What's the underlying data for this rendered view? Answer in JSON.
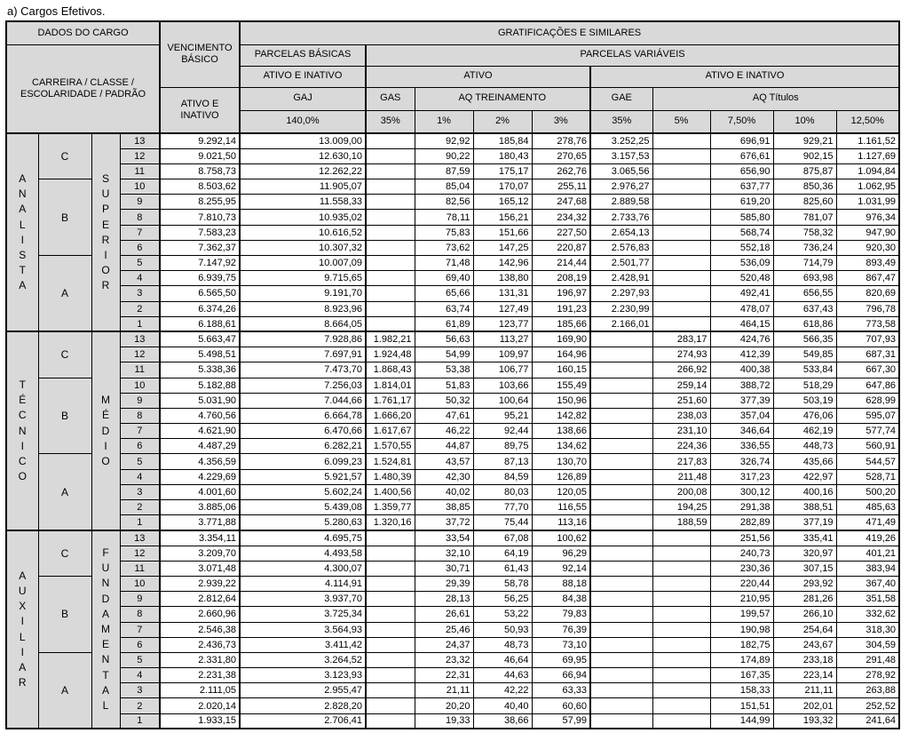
{
  "title": "a) Cargos Efetivos.",
  "columns": {
    "dados": "DADOS DO CARGO",
    "carreira_classe": "CARREIRA / CLASSE /\nESCOLARIDADE / PADRÃO",
    "vencimento": "VENCIMENTO\nBÁSICO",
    "venc_ativo_inativo": "ATIVO E\nINATIVO",
    "gratificacoes": "GRATIFICAÇÕES E SIMILARES",
    "parcelas_basicas": "PARCELAS BÁSICAS",
    "parcelas_basicas_sub": "ATIVO E INATIVO",
    "parcelas_variaveis": "PARCELAS VARIÁVEIS",
    "ativo": "ATIVO",
    "ativo_e_inativo": "ATIVO E INATIVO",
    "gaj": "GAJ",
    "gaj_pct": "140,0%",
    "gas": "GAS",
    "gas_pct": "35%",
    "aq_treinamento": "AQ TREINAMENTO",
    "pct_1": "1%",
    "pct_2": "2%",
    "pct_3": "3%",
    "gae": "GAE",
    "gae_pct": "35%",
    "aq_titulos": "AQ Títulos",
    "pct_5": "5%",
    "pct_7_5": "7,50%",
    "pct_10": "10%",
    "pct_12_5": "12,50%"
  },
  "value_column_keys": [
    "vencimento",
    "gaj",
    "gas",
    "aq-trein-1",
    "aq-trein-2",
    "aq-trein-3",
    "gae",
    "aq-tit-5",
    "aq-tit-7-5",
    "aq-tit-10",
    "aq-tit-12-5"
  ],
  "sections": [
    {
      "carreira": "ANALISTA",
      "escolaridade": "SUPERIOR",
      "classes": [
        {
          "label": "C",
          "rows": 3
        },
        {
          "label": "B",
          "rows": 5
        },
        {
          "label": "A",
          "rows": 5
        }
      ],
      "rows": [
        {
          "padrao": "13",
          "values": [
            "9.292,14",
            "13.009,00",
            "",
            "92,92",
            "185,84",
            "278,76",
            "3.252,25",
            "",
            "696,91",
            "929,21",
            "1.161,52"
          ]
        },
        {
          "padrao": "12",
          "values": [
            "9.021,50",
            "12.630,10",
            "",
            "90,22",
            "180,43",
            "270,65",
            "3.157,53",
            "",
            "676,61",
            "902,15",
            "1.127,69"
          ]
        },
        {
          "padrao": "11",
          "values": [
            "8.758,73",
            "12.262,22",
            "",
            "87,59",
            "175,17",
            "262,76",
            "3.065,56",
            "",
            "656,90",
            "875,87",
            "1.094,84"
          ]
        },
        {
          "padrao": "10",
          "values": [
            "8.503,62",
            "11.905,07",
            "",
            "85,04",
            "170,07",
            "255,11",
            "2.976,27",
            "",
            "637,77",
            "850,36",
            "1.062,95"
          ]
        },
        {
          "padrao": "9",
          "values": [
            "8.255,95",
            "11.558,33",
            "",
            "82,56",
            "165,12",
            "247,68",
            "2.889,58",
            "",
            "619,20",
            "825,60",
            "1.031,99"
          ]
        },
        {
          "padrao": "8",
          "values": [
            "7.810,73",
            "10.935,02",
            "",
            "78,11",
            "156,21",
            "234,32",
            "2.733,76",
            "",
            "585,80",
            "781,07",
            "976,34"
          ]
        },
        {
          "padrao": "7",
          "values": [
            "7.583,23",
            "10.616,52",
            "",
            "75,83",
            "151,66",
            "227,50",
            "2.654,13",
            "",
            "568,74",
            "758,32",
            "947,90"
          ]
        },
        {
          "padrao": "6",
          "values": [
            "7.362,37",
            "10.307,32",
            "",
            "73,62",
            "147,25",
            "220,87",
            "2.576,83",
            "",
            "552,18",
            "736,24",
            "920,30"
          ]
        },
        {
          "padrao": "5",
          "values": [
            "7.147,92",
            "10.007,09",
            "",
            "71,48",
            "142,96",
            "214,44",
            "2.501,77",
            "",
            "536,09",
            "714,79",
            "893,49"
          ]
        },
        {
          "padrao": "4",
          "values": [
            "6.939,75",
            "9.715,65",
            "",
            "69,40",
            "138,80",
            "208,19",
            "2.428,91",
            "",
            "520,48",
            "693,98",
            "867,47"
          ]
        },
        {
          "padrao": "3",
          "values": [
            "6.565,50",
            "9.191,70",
            "",
            "65,66",
            "131,31",
            "196,97",
            "2.297,93",
            "",
            "492,41",
            "656,55",
            "820,69"
          ]
        },
        {
          "padrao": "2",
          "values": [
            "6.374,26",
            "8.923,96",
            "",
            "63,74",
            "127,49",
            "191,23",
            "2.230,99",
            "",
            "478,07",
            "637,43",
            "796,78"
          ]
        },
        {
          "padrao": "1",
          "values": [
            "6.188,61",
            "8.664,05",
            "",
            "61,89",
            "123,77",
            "185,66",
            "2.166,01",
            "",
            "464,15",
            "618,86",
            "773,58"
          ]
        }
      ]
    },
    {
      "carreira": "TÉCNICO",
      "escolaridade": "MÉDIO",
      "classes": [
        {
          "label": "C",
          "rows": 3
        },
        {
          "label": "B",
          "rows": 5
        },
        {
          "label": "A",
          "rows": 5
        }
      ],
      "rows": [
        {
          "padrao": "13",
          "values": [
            "5.663,47",
            "7.928,86",
            "1.982,21",
            "56,63",
            "113,27",
            "169,90",
            "",
            "283,17",
            "424,76",
            "566,35",
            "707,93"
          ]
        },
        {
          "padrao": "12",
          "values": [
            "5.498,51",
            "7.697,91",
            "1.924,48",
            "54,99",
            "109,97",
            "164,96",
            "",
            "274,93",
            "412,39",
            "549,85",
            "687,31"
          ]
        },
        {
          "padrao": "11",
          "values": [
            "5.338,36",
            "7.473,70",
            "1.868,43",
            "53,38",
            "106,77",
            "160,15",
            "",
            "266,92",
            "400,38",
            "533,84",
            "667,30"
          ]
        },
        {
          "padrao": "10",
          "values": [
            "5.182,88",
            "7.256,03",
            "1.814,01",
            "51,83",
            "103,66",
            "155,49",
            "",
            "259,14",
            "388,72",
            "518,29",
            "647,86"
          ]
        },
        {
          "padrao": "9",
          "values": [
            "5.031,90",
            "7.044,66",
            "1.761,17",
            "50,32",
            "100,64",
            "150,96",
            "",
            "251,60",
            "377,39",
            "503,19",
            "628,99"
          ]
        },
        {
          "padrao": "8",
          "values": [
            "4.760,56",
            "6.664,78",
            "1.666,20",
            "47,61",
            "95,21",
            "142,82",
            "",
            "238,03",
            "357,04",
            "476,06",
            "595,07"
          ]
        },
        {
          "padrao": "7",
          "values": [
            "4.621,90",
            "6.470,66",
            "1.617,67",
            "46,22",
            "92,44",
            "138,66",
            "",
            "231,10",
            "346,64",
            "462,19",
            "577,74"
          ]
        },
        {
          "padrao": "6",
          "values": [
            "4.487,29",
            "6.282,21",
            "1.570,55",
            "44,87",
            "89,75",
            "134,62",
            "",
            "224,36",
            "336,55",
            "448,73",
            "560,91"
          ]
        },
        {
          "padrao": "5",
          "values": [
            "4.356,59",
            "6.099,23",
            "1.524,81",
            "43,57",
            "87,13",
            "130,70",
            "",
            "217,83",
            "326,74",
            "435,66",
            "544,57"
          ]
        },
        {
          "padrao": "4",
          "values": [
            "4.229,69",
            "5.921,57",
            "1.480,39",
            "42,30",
            "84,59",
            "126,89",
            "",
            "211,48",
            "317,23",
            "422,97",
            "528,71"
          ]
        },
        {
          "padrao": "3",
          "values": [
            "4.001,60",
            "5.602,24",
            "1.400,56",
            "40,02",
            "80,03",
            "120,05",
            "",
            "200,08",
            "300,12",
            "400,16",
            "500,20"
          ]
        },
        {
          "padrao": "2",
          "values": [
            "3.885,06",
            "5.439,08",
            "1.359,77",
            "38,85",
            "77,70",
            "116,55",
            "",
            "194,25",
            "291,38",
            "388,51",
            "485,63"
          ]
        },
        {
          "padrao": "1",
          "values": [
            "3.771,88",
            "5.280,63",
            "1.320,16",
            "37,72",
            "75,44",
            "113,16",
            "",
            "188,59",
            "282,89",
            "377,19",
            "471,49"
          ]
        }
      ]
    },
    {
      "carreira": "AUXILIAR",
      "escolaridade": "FUNDAMENTAL",
      "classes": [
        {
          "label": "C",
          "rows": 3
        },
        {
          "label": "B",
          "rows": 5
        },
        {
          "label": "A",
          "rows": 5
        }
      ],
      "rows": [
        {
          "padrao": "13",
          "values": [
            "3.354,11",
            "4.695,75",
            "",
            "33,54",
            "67,08",
            "100,62",
            "",
            "",
            "251,56",
            "335,41",
            "419,26"
          ]
        },
        {
          "padrao": "12",
          "values": [
            "3.209,70",
            "4.493,58",
            "",
            "32,10",
            "64,19",
            "96,29",
            "",
            "",
            "240,73",
            "320,97",
            "401,21"
          ]
        },
        {
          "padrao": "11",
          "values": [
            "3.071,48",
            "4.300,07",
            "",
            "30,71",
            "61,43",
            "92,14",
            "",
            "",
            "230,36",
            "307,15",
            "383,94"
          ]
        },
        {
          "padrao": "10",
          "values": [
            "2.939,22",
            "4.114,91",
            "",
            "29,39",
            "58,78",
            "88,18",
            "",
            "",
            "220,44",
            "293,92",
            "367,40"
          ]
        },
        {
          "padrao": "9",
          "values": [
            "2.812,64",
            "3.937,70",
            "",
            "28,13",
            "56,25",
            "84,38",
            "",
            "",
            "210,95",
            "281,26",
            "351,58"
          ]
        },
        {
          "padrao": "8",
          "values": [
            "2.660,96",
            "3.725,34",
            "",
            "26,61",
            "53,22",
            "79,83",
            "",
            "",
            "199,57",
            "266,10",
            "332,62"
          ]
        },
        {
          "padrao": "7",
          "values": [
            "2.546,38",
            "3.564,93",
            "",
            "25,46",
            "50,93",
            "76,39",
            "",
            "",
            "190,98",
            "254,64",
            "318,30"
          ]
        },
        {
          "padrao": "6",
          "values": [
            "2.436,73",
            "3.411,42",
            "",
            "24,37",
            "48,73",
            "73,10",
            "",
            "",
            "182,75",
            "243,67",
            "304,59"
          ]
        },
        {
          "padrao": "5",
          "values": [
            "2.331,80",
            "3.264,52",
            "",
            "23,32",
            "46,64",
            "69,95",
            "",
            "",
            "174,89",
            "233,18",
            "291,48"
          ]
        },
        {
          "padrao": "4",
          "values": [
            "2.231,38",
            "3.123,93",
            "",
            "22,31",
            "44,63",
            "66,94",
            "",
            "",
            "167,35",
            "223,14",
            "278,92"
          ]
        },
        {
          "padrao": "3",
          "values": [
            "2.111,05",
            "2.955,47",
            "",
            "21,11",
            "42,22",
            "63,33",
            "",
            "",
            "158,33",
            "211,11",
            "263,88"
          ]
        },
        {
          "padrao": "2",
          "values": [
            "2.020,14",
            "2.828,20",
            "",
            "20,20",
            "40,40",
            "60,60",
            "",
            "",
            "151,51",
            "202,01",
            "252,52"
          ]
        },
        {
          "padrao": "1",
          "values": [
            "1.933,15",
            "2.706,41",
            "",
            "19,33",
            "38,66",
            "57,99",
            "",
            "",
            "144,99",
            "193,32",
            "241,64"
          ]
        }
      ]
    }
  ]
}
